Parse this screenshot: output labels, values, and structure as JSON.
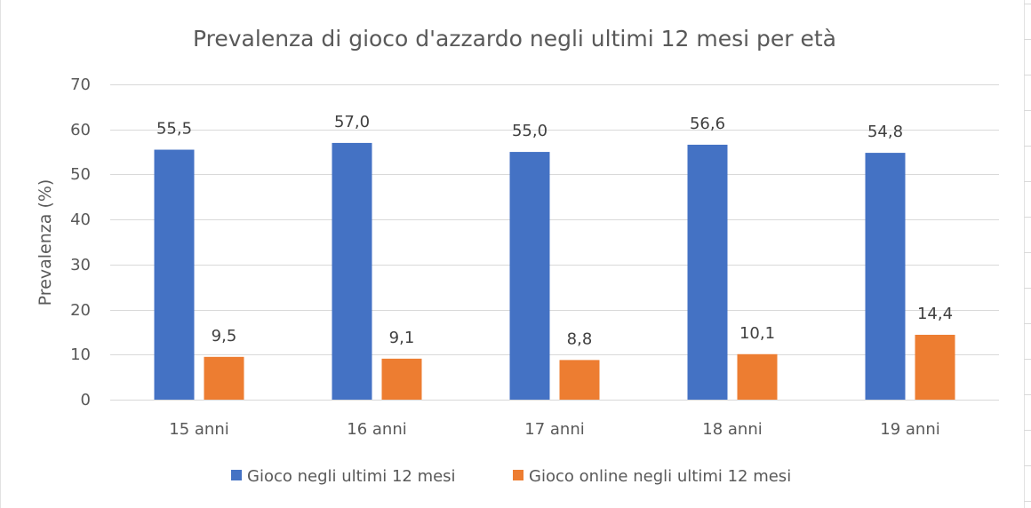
{
  "chart_data": {
    "type": "bar",
    "title": "Prevalenza di gioco d'azzardo negli ultimi 12 mesi per età",
    "xlabel": "",
    "ylabel": "Prevalenza (%)",
    "ylim": [
      0,
      70
    ],
    "yticks": [
      0,
      10,
      20,
      30,
      40,
      50,
      60,
      70
    ],
    "categories": [
      "15 anni",
      "16 anni",
      "17 anni",
      "18 anni",
      "19 anni"
    ],
    "series": [
      {
        "name": "Gioco negli ultimi 12 mesi",
        "color": "#4472c4",
        "values": [
          55.5,
          57.0,
          55.0,
          56.6,
          54.8
        ],
        "labels": [
          "55,5",
          "57,0",
          "55,0",
          "56,6",
          "54,8"
        ]
      },
      {
        "name": "Gioco online negli ultimi 12 mesi",
        "color": "#ed7d31",
        "values": [
          9.5,
          9.1,
          8.8,
          10.1,
          14.4
        ],
        "labels": [
          "9,5",
          "9,1",
          "8,8",
          "10,1",
          "14,4"
        ]
      }
    ],
    "grid": true,
    "legend_position": "bottom",
    "data_labels": true
  }
}
